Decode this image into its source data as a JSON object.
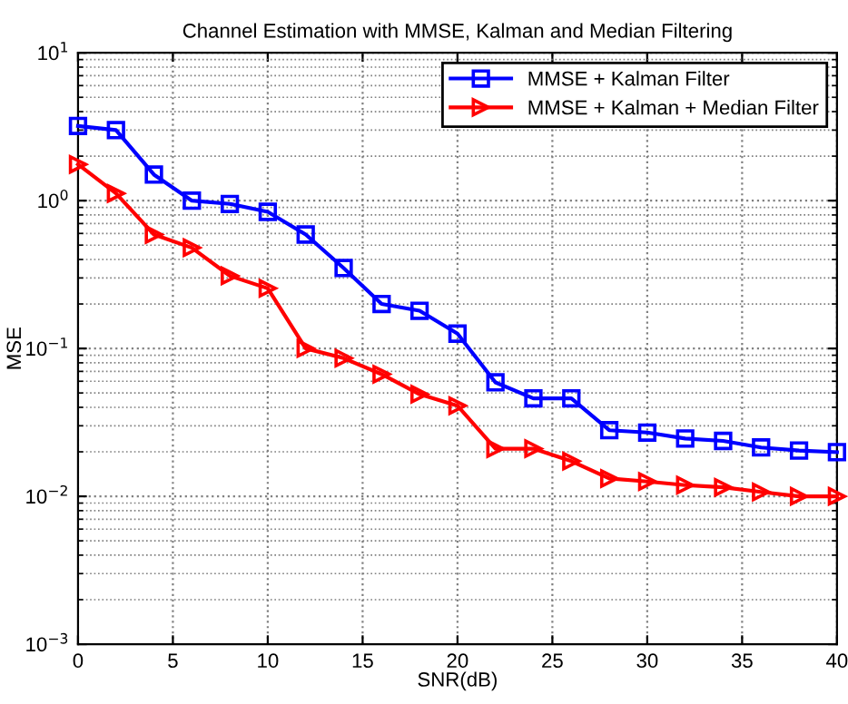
{
  "chart_data": {
    "type": "line",
    "title": "Channel Estimation with MMSE, Kalman and Median Filtering",
    "xlabel": "SNR(dB)",
    "ylabel": "MSE",
    "log": "y",
    "grid": true,
    "legend": "top right",
    "line_style": "solid",
    "x": [
      0,
      2,
      4,
      6,
      8,
      10,
      12,
      14,
      16,
      18,
      20,
      22,
      24,
      26,
      28,
      30,
      32,
      34,
      36,
      38,
      40
    ],
    "xlim": [
      0,
      40
    ],
    "xticks": [
      0,
      5,
      10,
      15,
      20,
      25,
      30,
      35,
      40
    ],
    "ylim": [
      0.001,
      10
    ],
    "yticks": [
      {
        "value": 0.001,
        "label": "10$^{−3}$"
      },
      {
        "value": 0.01,
        "label": "10$^{−2}$"
      },
      {
        "value": 0.1,
        "label": "10$^{−1}$"
      },
      {
        "value": 1,
        "label": "10$^{0}$"
      },
      {
        "value": 10,
        "label": "10$^{1}$"
      }
    ],
    "series": [
      {
        "name": "MMSE + Kalman Filter",
        "color": "#0000ff",
        "marker": "square",
        "values": [
          3.2,
          3.0,
          1.5,
          1.0,
          0.95,
          0.84,
          0.59,
          0.35,
          0.2,
          0.18,
          0.126,
          0.059,
          0.046,
          0.046,
          0.028,
          0.027,
          0.0246,
          0.0237,
          0.0214,
          0.0204,
          0.0199
        ]
      },
      {
        "name": "MMSE + Kalman + Median Filter",
        "color": "#ff0000",
        "marker": "triangle",
        "values": [
          1.76,
          1.12,
          0.59,
          0.48,
          0.31,
          0.255,
          0.1,
          0.086,
          0.067,
          0.049,
          0.041,
          0.021,
          0.021,
          0.0173,
          0.0132,
          0.0126,
          0.0119,
          0.0115,
          0.0107,
          0.01,
          0.01
        ]
      }
    ]
  }
}
